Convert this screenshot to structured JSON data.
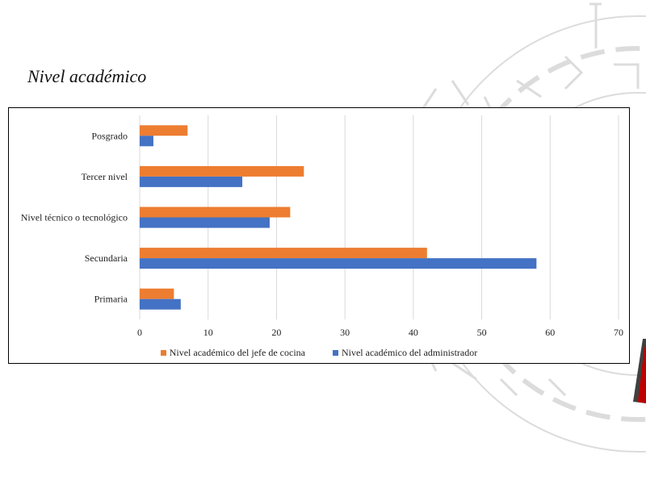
{
  "slide": {
    "title": "Nivel académico"
  },
  "colors": {
    "jefe": "#ED7D31",
    "admin": "#4472C4",
    "grid": "#D9D9D9",
    "watermark": "#DCDCDC",
    "accent_red": "#C00000",
    "accent_dark": "#404040"
  },
  "chart_data": {
    "type": "bar",
    "orientation": "horizontal",
    "categories": [
      "Posgrado",
      "Tercer nivel",
      "Nivel técnico o tecnológico",
      "Secundaria",
      "Primaria"
    ],
    "series": [
      {
        "name": "Nivel académico del jefe de cocina",
        "values": [
          7,
          24,
          22,
          42,
          5
        ]
      },
      {
        "name": "Nivel académico del administrador",
        "values": [
          2,
          15,
          19,
          58,
          6
        ]
      }
    ],
    "xticks": [
      "0",
      "10",
      "20",
      "30",
      "40",
      "50",
      "60",
      "70"
    ],
    "xlim": [
      0,
      70
    ],
    "grid": true,
    "legend_position": "bottom"
  }
}
